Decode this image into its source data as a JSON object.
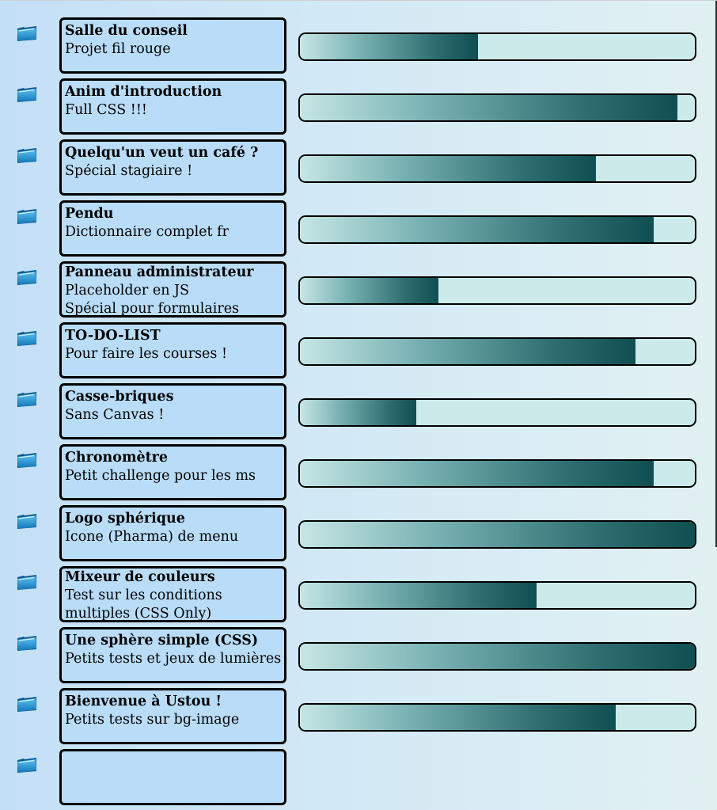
{
  "projects": [
    {
      "title": "Salle du conseil",
      "lines": [
        "Projet fil rouge"
      ],
      "progress": 0.45
    },
    {
      "title": "Anim d'introduction",
      "lines": [
        "Full CSS !!!"
      ],
      "progress": 0.955
    },
    {
      "title": "Quelqu'un veut un café ?",
      "lines": [
        "Spécial stagiaire !"
      ],
      "progress": 0.75
    },
    {
      "title": "Pendu",
      "lines": [
        "Dictionnaire complet fr"
      ],
      "progress": 0.895
    },
    {
      "title": "Panneau administrateur",
      "lines": [
        "Placeholder en JS",
        "Spécial pour formulaires"
      ],
      "progress": 0.35
    },
    {
      "title": "TO-DO-LIST",
      "lines": [
        "Pour faire les courses !"
      ],
      "progress": 0.85
    },
    {
      "title": "Casse-briques",
      "lines": [
        "Sans Canvas !"
      ],
      "progress": 0.295
    },
    {
      "title": "Chronomètre",
      "lines": [
        "Petit challenge pour les ms"
      ],
      "progress": 0.895
    },
    {
      "title": "Logo sphérique",
      "lines": [
        "Icone (Pharma) de menu"
      ],
      "progress": 1.0
    },
    {
      "title": "Mixeur de couleurs",
      "lines": [
        "Test sur les conditions",
        "multiples (CSS Only)"
      ],
      "progress": 0.6
    },
    {
      "title": "Une sphère simple (CSS)",
      "lines": [
        "Petits tests et jeux de lumières"
      ],
      "progress": 1.0
    },
    {
      "title": "Bienvenue à Ustou !",
      "lines": [
        "Petits tests sur bg-image"
      ],
      "progress": 0.8
    },
    {
      "title": "",
      "lines": [],
      "progress": null
    }
  ],
  "icons": {
    "project": "folder-icon"
  },
  "colors": {
    "card_bg": "#b9ddf8",
    "track_bg": "#cdeaea",
    "fill_dark": "#0f4f51",
    "fill_light": "#c6e6e5"
  }
}
